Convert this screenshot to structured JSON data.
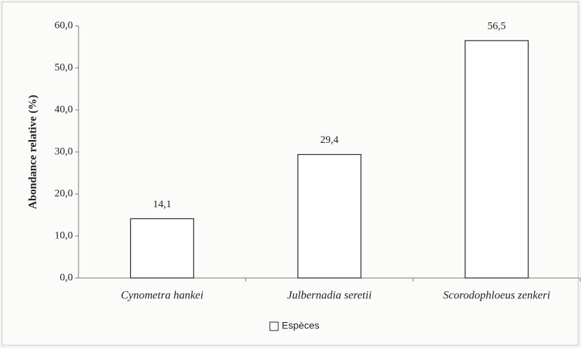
{
  "chart_data": {
    "type": "bar",
    "ylabel": "Abondance relative (%)",
    "categories": [
      "Cynometra hankei",
      "Julbernadia seretii",
      "Scorodophloeus zenkeri"
    ],
    "series": [
      {
        "name": "Espèces",
        "color": "#ffffff",
        "values": [
          14.1,
          29.4,
          56.5
        ],
        "value_labels": [
          "14,1",
          "29,4",
          "56,5"
        ]
      }
    ],
    "ylim": [
      0,
      60
    ],
    "yticks": [
      {
        "value": 0,
        "label": "0,0"
      },
      {
        "value": 10,
        "label": "10,0"
      },
      {
        "value": 20,
        "label": "20,0"
      },
      {
        "value": 30,
        "label": "30,0"
      },
      {
        "value": 40,
        "label": "40,0"
      },
      {
        "value": 50,
        "label": "50,0"
      },
      {
        "value": 60,
        "label": "60,0"
      }
    ],
    "legend": "bottom"
  }
}
